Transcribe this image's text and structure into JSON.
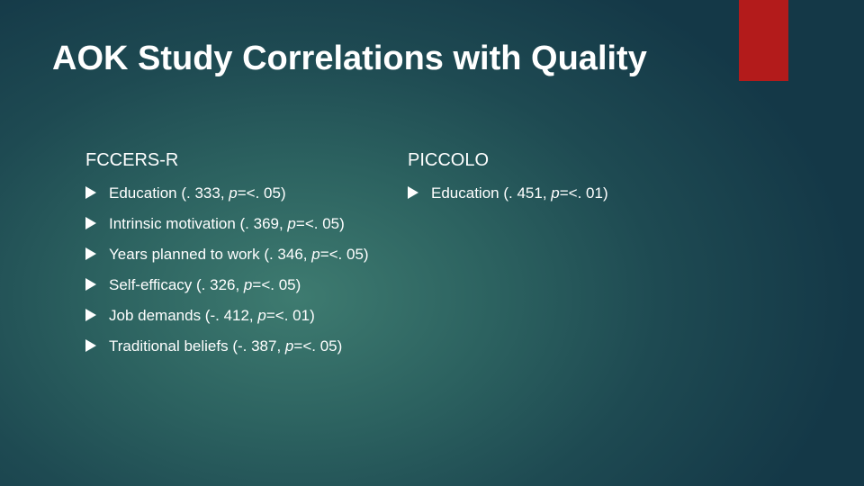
{
  "slide": {
    "title": "AOK Study Correlations with Quality",
    "accent_color": "#b31b1b",
    "columns": [
      {
        "heading": "FCCERS-R",
        "items": [
          {
            "label": "Education",
            "prefix": " (. 333, ",
            "p": "p",
            "suffix": "=<. 05)"
          },
          {
            "label": "Intrinsic motivation",
            "prefix": " (. 369, ",
            "p": "p",
            "suffix": "=<. 05)"
          },
          {
            "label": "Years planned to work",
            "prefix": " (. 346, ",
            "p": "p",
            "suffix": "=<. 05)"
          },
          {
            "label": "Self-efficacy",
            "prefix": " (. 326, ",
            "p": "p",
            "suffix": "=<. 05)"
          },
          {
            "label": "Job demands",
            "prefix": " (-. 412, ",
            "p": "p",
            "suffix": "=<. 01)"
          },
          {
            "label": "Traditional beliefs",
            "prefix": " (-. 387, ",
            "p": "p",
            "suffix": "=<. 05)"
          }
        ]
      },
      {
        "heading": "PICCOLO",
        "items": [
          {
            "label": "Education",
            "prefix": " (. 451, ",
            "p": "p",
            "suffix": "=<. 01)"
          }
        ]
      }
    ]
  }
}
